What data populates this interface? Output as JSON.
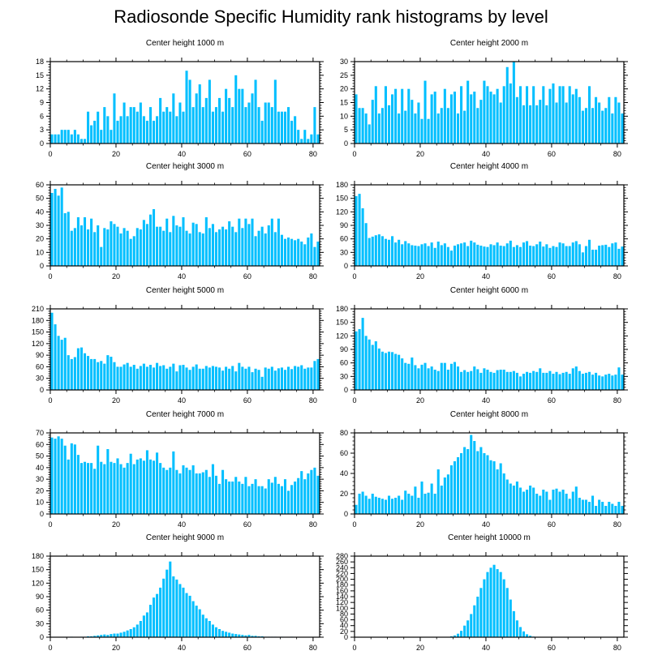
{
  "title": "Radiosonde Specific Humidity rank histograms by level",
  "colors": {
    "bar": "#00bfff",
    "axis": "#000000"
  },
  "chart_data": [
    {
      "type": "bar",
      "title": "Center height 1000 m",
      "xlabel": "",
      "ylabel": "",
      "xlim": [
        0,
        82
      ],
      "ylim": [
        0,
        18
      ],
      "xticks": [
        0,
        20,
        40,
        60,
        80
      ],
      "yticks": [
        0,
        3,
        6,
        9,
        12,
        15,
        18
      ],
      "values": [
        2,
        2,
        2,
        3,
        3,
        3,
        2,
        3,
        2,
        1,
        1,
        7,
        4,
        5,
        7,
        3,
        8,
        6,
        3,
        11,
        5,
        6,
        9,
        6,
        8,
        8,
        7,
        9,
        6,
        5,
        8,
        5,
        6,
        10,
        7,
        8,
        7,
        11,
        6,
        9,
        7,
        16,
        14,
        8,
        11,
        13,
        8,
        10,
        14,
        7,
        8,
        10,
        7,
        12,
        10,
        8,
        15,
        12,
        12,
        8,
        9,
        11,
        14,
        8,
        5,
        9,
        9,
        8,
        14,
        7,
        7,
        7,
        8,
        5,
        6,
        3,
        1,
        3,
        1,
        2,
        8,
        2
      ]
    },
    {
      "type": "bar",
      "title": "Center height 2000 m",
      "xlabel": "",
      "ylabel": "",
      "xlim": [
        0,
        82
      ],
      "ylim": [
        0,
        30
      ],
      "xticks": [
        0,
        20,
        40,
        60,
        80
      ],
      "yticks": [
        0,
        5,
        10,
        15,
        20,
        25,
        30
      ],
      "values": [
        18,
        13,
        13,
        11,
        7,
        16,
        21,
        11,
        13,
        21,
        14,
        18,
        20,
        11,
        20,
        12,
        20,
        16,
        11,
        15,
        9,
        23,
        9,
        18,
        19,
        11,
        13,
        20,
        13,
        18,
        19,
        11,
        21,
        12,
        23,
        18,
        19,
        13,
        16,
        23,
        21,
        19,
        18,
        20,
        15,
        21,
        28,
        22,
        30,
        17,
        21,
        14,
        21,
        14,
        21,
        14,
        16,
        21,
        14,
        20,
        22,
        15,
        21,
        21,
        15,
        21,
        18,
        20,
        17,
        12,
        13,
        21,
        13,
        17,
        15,
        12,
        13,
        17,
        11,
        17,
        15,
        11
      ]
    },
    {
      "type": "bar",
      "title": "Center height 3000 m",
      "xlabel": "",
      "ylabel": "",
      "xlim": [
        0,
        82
      ],
      "ylim": [
        0,
        60
      ],
      "xticks": [
        0,
        20,
        40,
        60,
        80
      ],
      "yticks": [
        0,
        10,
        20,
        30,
        40,
        50,
        60
      ],
      "values": [
        54,
        57,
        52,
        58,
        39,
        40,
        26,
        28,
        36,
        30,
        36,
        27,
        35,
        25,
        30,
        14,
        28,
        27,
        33,
        31,
        29,
        24,
        28,
        26,
        20,
        22,
        28,
        27,
        34,
        31,
        38,
        42,
        29,
        29,
        26,
        35,
        25,
        37,
        30,
        29,
        36,
        26,
        24,
        32,
        31,
        25,
        24,
        36,
        28,
        31,
        25,
        27,
        29,
        27,
        33,
        29,
        25,
        35,
        28,
        35,
        31,
        35,
        22,
        26,
        29,
        24,
        30,
        35,
        25,
        35,
        23,
        20,
        21,
        20,
        19,
        20,
        18,
        16,
        21,
        24,
        14,
        18
      ]
    },
    {
      "type": "bar",
      "title": "Center height 4000 m",
      "xlabel": "",
      "ylabel": "",
      "xlim": [
        0,
        82
      ],
      "ylim": [
        0,
        180
      ],
      "xticks": [
        0,
        20,
        40,
        60,
        80
      ],
      "yticks": [
        0,
        30,
        60,
        90,
        120,
        150,
        180
      ],
      "values": [
        155,
        160,
        128,
        95,
        62,
        65,
        68,
        70,
        66,
        60,
        58,
        66,
        52,
        58,
        48,
        55,
        50,
        46,
        45,
        44,
        48,
        50,
        44,
        52,
        40,
        54,
        46,
        50,
        42,
        34,
        45,
        48,
        50,
        52,
        44,
        56,
        52,
        47,
        45,
        43,
        42,
        48,
        46,
        52,
        45,
        44,
        50,
        56,
        42,
        46,
        42,
        52,
        55,
        45,
        44,
        48,
        54,
        43,
        48,
        40,
        44,
        42,
        52,
        50,
        44,
        44,
        52,
        55,
        48,
        30,
        44,
        58,
        36,
        36,
        45,
        46,
        47,
        42,
        50,
        52,
        38,
        43
      ]
    },
    {
      "type": "bar",
      "title": "Center height 5000 m",
      "xlabel": "",
      "ylabel": "",
      "xlim": [
        0,
        82
      ],
      "ylim": [
        0,
        210
      ],
      "xticks": [
        0,
        20,
        40,
        60,
        80
      ],
      "yticks": [
        0,
        30,
        60,
        90,
        120,
        150,
        180,
        210
      ],
      "values": [
        200,
        170,
        140,
        130,
        135,
        90,
        80,
        85,
        108,
        110,
        95,
        88,
        80,
        80,
        72,
        75,
        68,
        90,
        86,
        72,
        60,
        60,
        66,
        70,
        60,
        65,
        55,
        62,
        68,
        60,
        65,
        58,
        70,
        62,
        64,
        55,
        60,
        68,
        48,
        64,
        65,
        58,
        52,
        60,
        66,
        55,
        55,
        62,
        58,
        62,
        60,
        58,
        50,
        60,
        55,
        62,
        48,
        70,
        60,
        55,
        60,
        46,
        55,
        52,
        34,
        58,
        55,
        60,
        50,
        56,
        58,
        52,
        60,
        54,
        62,
        60,
        64,
        55,
        58,
        58,
        75,
        80
      ]
    },
    {
      "type": "bar",
      "title": "Center height 6000 m",
      "xlabel": "",
      "ylabel": "",
      "xlim": [
        0,
        82
      ],
      "ylim": [
        0,
        180
      ],
      "xticks": [
        0,
        20,
        40,
        60,
        80
      ],
      "yticks": [
        0,
        30,
        60,
        90,
        120,
        150,
        180
      ],
      "values": [
        130,
        135,
        160,
        120,
        112,
        100,
        108,
        92,
        85,
        82,
        85,
        84,
        80,
        78,
        70,
        60,
        58,
        72,
        55,
        48,
        56,
        60,
        48,
        52,
        45,
        42,
        60,
        60,
        45,
        58,
        62,
        52,
        40,
        44,
        40,
        42,
        52,
        46,
        38,
        48,
        45,
        40,
        38,
        44,
        45,
        45,
        40,
        40,
        42,
        38,
        30,
        36,
        40,
        38,
        42,
        40,
        48,
        38,
        38,
        42,
        36,
        40,
        35,
        38,
        40,
        36,
        48,
        52,
        42,
        36,
        38,
        40,
        34,
        38,
        32,
        30,
        34,
        36,
        32,
        34,
        50,
        34
      ]
    },
    {
      "type": "bar",
      "title": "Center height 7000 m",
      "xlabel": "",
      "ylabel": "",
      "xlim": [
        0,
        82
      ],
      "ylim": [
        0,
        70
      ],
      "xticks": [
        0,
        20,
        40,
        60,
        80
      ],
      "yticks": [
        0,
        10,
        20,
        30,
        40,
        50,
        60,
        70
      ],
      "values": [
        66,
        65,
        67,
        65,
        59,
        47,
        61,
        60,
        51,
        44,
        45,
        44,
        44,
        39,
        59,
        45,
        43,
        56,
        45,
        44,
        48,
        43,
        40,
        44,
        52,
        43,
        47,
        48,
        46,
        55,
        47,
        46,
        53,
        44,
        40,
        38,
        40,
        54,
        38,
        35,
        42,
        40,
        38,
        42,
        35,
        35,
        36,
        38,
        32,
        43,
        33,
        26,
        38,
        30,
        28,
        28,
        32,
        28,
        26,
        32,
        24,
        26,
        30,
        24,
        24,
        22,
        30,
        27,
        32,
        26,
        24,
        30,
        20,
        25,
        28,
        31,
        37,
        30,
        35,
        38,
        40,
        33
      ]
    },
    {
      "type": "bar",
      "title": "Center height 8000 m",
      "xlabel": "",
      "ylabel": "",
      "xlim": [
        0,
        82
      ],
      "ylim": [
        0,
        80
      ],
      "xticks": [
        0,
        20,
        40,
        60,
        80
      ],
      "yticks": [
        0,
        20,
        40,
        60,
        80
      ],
      "values": [
        9,
        20,
        22,
        18,
        15,
        20,
        17,
        16,
        15,
        14,
        18,
        15,
        16,
        18,
        14,
        23,
        20,
        18,
        27,
        16,
        32,
        20,
        21,
        30,
        20,
        44,
        28,
        36,
        39,
        48,
        52,
        56,
        60,
        66,
        64,
        78,
        72,
        62,
        66,
        60,
        58,
        53,
        52,
        44,
        50,
        40,
        34,
        30,
        28,
        32,
        26,
        22,
        24,
        28,
        26,
        20,
        18,
        24,
        22,
        14,
        24,
        25,
        22,
        24,
        20,
        15,
        22,
        27,
        16,
        14,
        14,
        12,
        18,
        8,
        14,
        12,
        8,
        12,
        10,
        8,
        12,
        8
      ]
    },
    {
      "type": "bar",
      "title": "Center height 9000 m",
      "xlabel": "",
      "ylabel": "",
      "xlim": [
        0,
        82
      ],
      "ylim": [
        0,
        180
      ],
      "xticks": [
        0,
        20,
        40,
        60,
        80
      ],
      "yticks": [
        0,
        30,
        60,
        90,
        120,
        150,
        180
      ],
      "values": [
        0,
        0,
        0,
        0,
        0,
        0,
        1,
        0,
        0,
        1,
        1,
        2,
        2,
        3,
        4,
        5,
        6,
        5,
        7,
        8,
        8,
        10,
        12,
        15,
        18,
        22,
        28,
        36,
        48,
        55,
        72,
        88,
        96,
        110,
        130,
        150,
        168,
        135,
        128,
        118,
        110,
        98,
        92,
        80,
        70,
        62,
        50,
        42,
        36,
        28,
        22,
        18,
        14,
        12,
        10,
        8,
        7,
        6,
        5,
        4,
        5,
        3,
        3,
        2,
        2,
        1,
        1,
        1,
        1,
        0,
        1,
        0,
        0,
        1,
        0,
        0,
        0,
        0,
        0,
        0,
        0,
        0
      ]
    },
    {
      "type": "bar",
      "title": "Center height 10000 m",
      "xlabel": "",
      "ylabel": "",
      "xlim": [
        0,
        82
      ],
      "ylim": [
        0,
        280
      ],
      "xticks": [
        0,
        20,
        40,
        60,
        80
      ],
      "yticks": [
        0,
        20,
        40,
        60,
        80,
        100,
        120,
        140,
        160,
        180,
        200,
        220,
        240,
        260,
        280
      ],
      "values": [
        0,
        0,
        0,
        0,
        0,
        0,
        0,
        0,
        0,
        0,
        0,
        0,
        0,
        0,
        0,
        0,
        0,
        0,
        0,
        0,
        0,
        0,
        0,
        0,
        0,
        0,
        0,
        0,
        1,
        3,
        6,
        12,
        22,
        40,
        58,
        80,
        110,
        140,
        170,
        200,
        225,
        240,
        250,
        235,
        225,
        200,
        170,
        130,
        90,
        58,
        35,
        20,
        10,
        5,
        2,
        1,
        0,
        0,
        0,
        0,
        0,
        0,
        0,
        0,
        0,
        0,
        0,
        0,
        0,
        0,
        0,
        0,
        0,
        0,
        0,
        0,
        0,
        0,
        0,
        0,
        0,
        0
      ]
    }
  ]
}
